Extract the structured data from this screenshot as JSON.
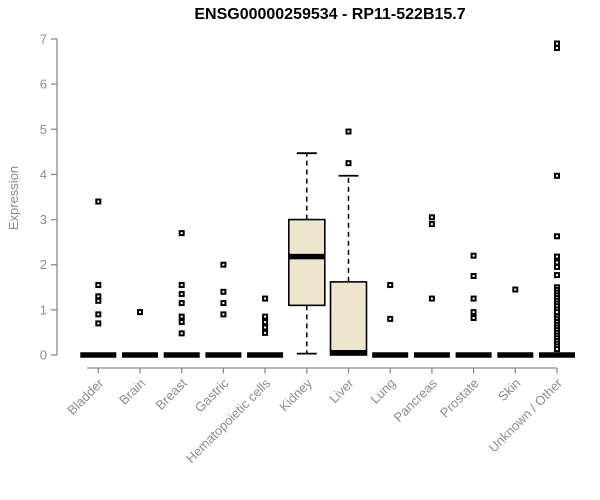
{
  "chart_data": {
    "type": "boxplot",
    "title": "ENSG00000259534 - RP11-522B15.7",
    "ylabel": "Expression",
    "xlabel": "",
    "ylim": [
      0,
      7
    ],
    "yticks": [
      0,
      1,
      2,
      3,
      4,
      5,
      6,
      7
    ],
    "grid": false,
    "legend": "none",
    "categories": [
      "Bladder",
      "Brain",
      "Breast",
      "Gastric",
      "Hematopoietic cells",
      "Kidney",
      "Liver",
      "Lung",
      "Pancreas",
      "Prostate",
      "Skin",
      "Unknown / Other"
    ],
    "series": [
      {
        "label": "Bladder",
        "q1": 0,
        "median": 0,
        "q3": 0,
        "whisker_low": 0,
        "whisker_high": 0,
        "outliers": [
          3.4,
          1.55,
          1.3,
          1.2,
          0.9,
          0.7
        ]
      },
      {
        "label": "Brain",
        "q1": 0,
        "median": 0,
        "q3": 0,
        "whisker_low": 0,
        "whisker_high": 0,
        "outliers": [
          0.95
        ]
      },
      {
        "label": "Breast",
        "q1": 0,
        "median": 0,
        "q3": 0,
        "whisker_low": 0,
        "whisker_high": 0,
        "outliers": [
          2.7,
          1.55,
          1.35,
          1.15,
          0.85,
          0.73,
          0.48
        ]
      },
      {
        "label": "Gastric",
        "q1": 0,
        "median": 0,
        "q3": 0,
        "whisker_low": 0,
        "whisker_high": 0,
        "outliers": [
          2.0,
          1.4,
          1.15,
          0.9
        ]
      },
      {
        "label": "Hematopoietic cells",
        "q1": 0,
        "median": 0,
        "q3": 0,
        "whisker_low": 0,
        "whisker_high": 0,
        "outliers": [
          1.25,
          0.85,
          0.73,
          0.61,
          0.49
        ]
      },
      {
        "label": "Kidney",
        "q1": 1.1,
        "median": 2.18,
        "q3": 3.0,
        "whisker_low": 0.03,
        "whisker_high": 4.47,
        "outliers": []
      },
      {
        "label": "Liver",
        "q1": 0,
        "median": 0.05,
        "q3": 1.62,
        "whisker_low": 0,
        "whisker_high": 3.97,
        "outliers": [
          4.95,
          4.25
        ]
      },
      {
        "label": "Lung",
        "q1": 0,
        "median": 0,
        "q3": 0,
        "whisker_low": 0,
        "whisker_high": 0,
        "outliers": [
          1.55,
          0.8
        ]
      },
      {
        "label": "Pancreas",
        "q1": 0,
        "median": 0,
        "q3": 0,
        "whisker_low": 0,
        "whisker_high": 0,
        "outliers": [
          3.05,
          2.9,
          1.25
        ]
      },
      {
        "label": "Prostate",
        "q1": 0,
        "median": 0,
        "q3": 0,
        "whisker_low": 0,
        "whisker_high": 0,
        "outliers": [
          2.2,
          1.75,
          1.25,
          0.95,
          0.82
        ]
      },
      {
        "label": "Skin",
        "q1": 0,
        "median": 0,
        "q3": 0,
        "whisker_low": 0,
        "whisker_high": 0,
        "outliers": [
          1.45
        ]
      },
      {
        "label": "Unknown / Other",
        "q1": 0,
        "median": 0,
        "q3": 0,
        "whisker_low": 0,
        "whisker_high": 0,
        "outliers": [
          6.9,
          6.8,
          3.97,
          2.63,
          2.18,
          2.05,
          1.95,
          1.77,
          1.5,
          1.44,
          1.38,
          1.32,
          1.26,
          1.2,
          1.14,
          1.08,
          1.01,
          0.95,
          0.85,
          0.79,
          0.73,
          0.67,
          0.61,
          0.55,
          0.49,
          0.43,
          0.37,
          0.31,
          0.25,
          0.19,
          0.13
        ]
      }
    ],
    "colors": {
      "box_fill": "#ede6cd",
      "box_stroke": "#000000",
      "median": "#000000",
      "outlier": "#000000",
      "axis": "#8a8a8a",
      "text": "#8c8c8c",
      "title": "#000000",
      "background": "#ffffff"
    }
  }
}
